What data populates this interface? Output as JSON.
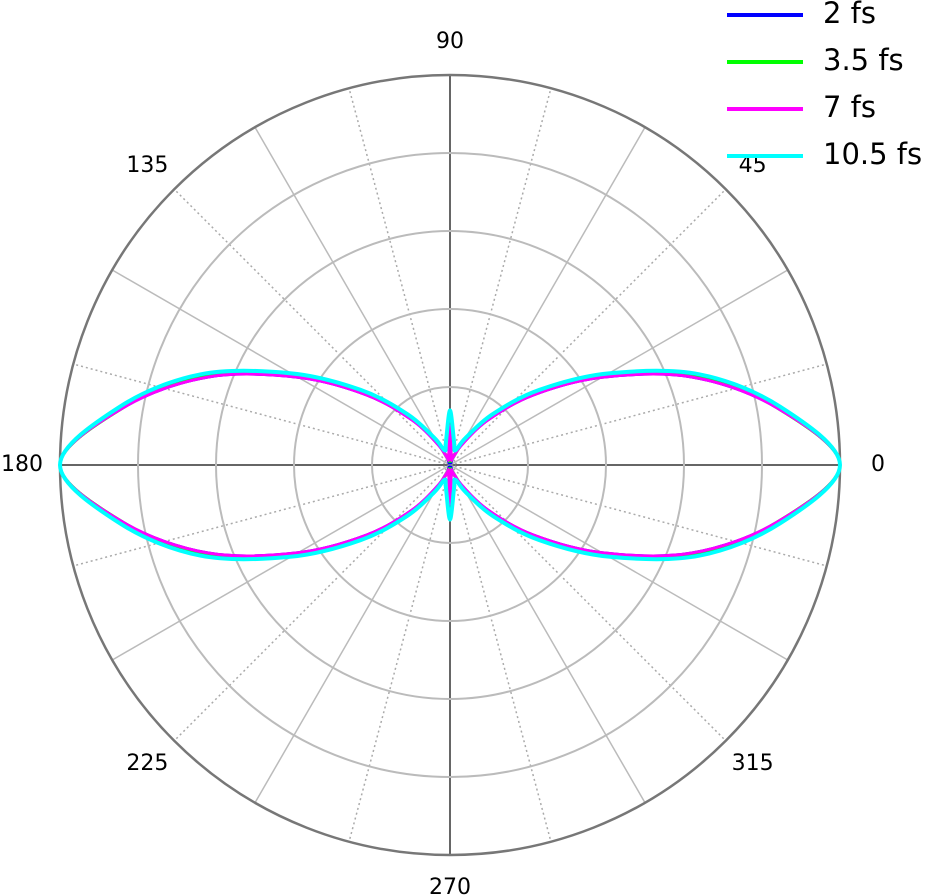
{
  "chart_data": {
    "type": "polar",
    "theta": [
      0,
      10,
      20,
      30,
      40,
      50,
      60,
      70,
      80,
      90,
      100,
      110,
      120,
      130,
      140,
      150,
      160,
      170,
      180,
      190,
      200,
      210,
      220,
      230,
      240,
      250,
      260,
      270,
      280,
      290,
      300,
      310,
      320,
      330,
      340,
      350
    ],
    "rlim": [
      0,
      1
    ],
    "rticks": [
      0.2,
      0.4,
      0.6,
      0.8,
      1
    ],
    "thetaticks": [
      0,
      45,
      90,
      135,
      180,
      225,
      270,
      315
    ],
    "series": [
      {
        "name": "2 fs",
        "color": "#0000ff",
        "values": [
          1,
          0.85,
          0.66,
          0.45,
          0.28,
          0.15,
          0.06,
          0.02,
          0.01,
          0.09,
          0.01,
          0.02,
          0.06,
          0.15,
          0.28,
          0.45,
          0.66,
          0.85,
          1,
          0.85,
          0.66,
          0.45,
          0.28,
          0.15,
          0.06,
          0.02,
          0.01,
          0.09,
          0.01,
          0.02,
          0.06,
          0.15,
          0.28,
          0.45,
          0.66,
          0.85
        ]
      },
      {
        "name": "3.5 fs",
        "color": "#00ff00",
        "values": [
          1,
          0.85,
          0.67,
          0.46,
          0.29,
          0.16,
          0.07,
          0.02,
          0.01,
          0.03,
          0.01,
          0.02,
          0.07,
          0.16,
          0.29,
          0.46,
          0.67,
          0.85,
          1,
          0.85,
          0.67,
          0.46,
          0.29,
          0.16,
          0.07,
          0.02,
          0.01,
          0.03,
          0.01,
          0.02,
          0.07,
          0.16,
          0.29,
          0.46,
          0.67,
          0.85
        ]
      },
      {
        "name": "7 fs",
        "color": "#ff00ff",
        "values": [
          1,
          0.85,
          0.66,
          0.45,
          0.28,
          0.15,
          0.06,
          0.02,
          0.02,
          0.1,
          0.02,
          0.02,
          0.06,
          0.15,
          0.28,
          0.45,
          0.66,
          0.85,
          1,
          0.85,
          0.66,
          0.45,
          0.28,
          0.15,
          0.06,
          0.02,
          0.02,
          0.1,
          0.02,
          0.02,
          0.06,
          0.15,
          0.28,
          0.45,
          0.66,
          0.85
        ]
      },
      {
        "name": "10.5 fs",
        "color": "#00ffff",
        "values": [
          1,
          0.86,
          0.68,
          0.47,
          0.3,
          0.17,
          0.08,
          0.04,
          0.06,
          0.14,
          0.06,
          0.04,
          0.08,
          0.17,
          0.3,
          0.47,
          0.68,
          0.86,
          1,
          0.86,
          0.68,
          0.47,
          0.3,
          0.17,
          0.08,
          0.04,
          0.06,
          0.14,
          0.06,
          0.04,
          0.08,
          0.17,
          0.3,
          0.47,
          0.68,
          0.86
        ]
      }
    ]
  }
}
